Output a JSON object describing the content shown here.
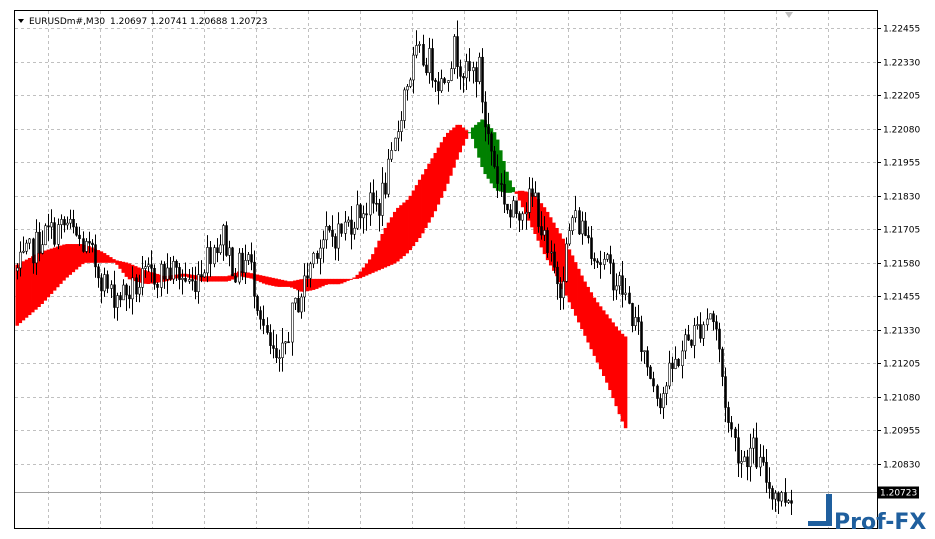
{
  "chart_title": {
    "symbol_timeframe": "EURUSDm#,M30",
    "ohlc": "1.20697 1.20741 1.20688 1.20723"
  },
  "watermark": {
    "text": "Prof-FX"
  },
  "colors": {
    "background": "#ffffff",
    "grid": "#c0c0c0",
    "candle": "#000000",
    "cloud_up": "#008000",
    "cloud_down": "#ff0000",
    "price_tag_bg": "#000000",
    "logo": "#1f5f9e"
  },
  "chart_data": {
    "type": "candlestick",
    "title": "EURUSDm#,M30  1.20697 1.20741 1.20688 1.20723",
    "ylim": [
      1.2059,
      1.2252
    ],
    "y_ticks": [
      "1.22455",
      "1.22330",
      "1.22205",
      "1.22080",
      "1.21955",
      "1.21830",
      "1.21705",
      "1.21580",
      "1.21455",
      "1.21330",
      "1.21205",
      "1.21080",
      "1.20955",
      "1.20830"
    ],
    "current_price": "1.20723",
    "grid": true,
    "close_anchors": [
      [
        0,
        1.2155
      ],
      [
        8,
        1.2168
      ],
      [
        16,
        1.2172
      ],
      [
        24,
        1.216
      ],
      [
        30,
        1.2146
      ],
      [
        36,
        1.2147
      ],
      [
        42,
        1.2153
      ],
      [
        50,
        1.2155
      ],
      [
        56,
        1.215
      ],
      [
        62,
        1.2163
      ],
      [
        66,
        1.2168
      ],
      [
        70,
        1.2155
      ],
      [
        74,
        1.216
      ],
      [
        78,
        1.214
      ],
      [
        80,
        1.2128
      ],
      [
        84,
        1.2118
      ],
      [
        88,
        1.2138
      ],
      [
        92,
        1.215
      ],
      [
        96,
        1.2165
      ],
      [
        104,
        1.217
      ],
      [
        110,
        1.2178
      ],
      [
        116,
        1.218
      ],
      [
        120,
        1.2195
      ],
      [
        124,
        1.2222
      ],
      [
        128,
        1.2235
      ],
      [
        132,
        1.2233
      ],
      [
        136,
        1.2225
      ],
      [
        140,
        1.2238
      ],
      [
        144,
        1.2228
      ],
      [
        148,
        1.223
      ],
      [
        150,
        1.221
      ],
      [
        154,
        1.219
      ],
      [
        158,
        1.2175
      ],
      [
        162,
        1.218
      ],
      [
        166,
        1.2182
      ],
      [
        170,
        1.216
      ],
      [
        174,
        1.215
      ],
      [
        178,
        1.2175
      ],
      [
        182,
        1.217
      ],
      [
        186,
        1.216
      ],
      [
        190,
        1.2155
      ],
      [
        194,
        1.2148
      ],
      [
        198,
        1.2135
      ],
      [
        202,
        1.212
      ],
      [
        206,
        1.2108
      ],
      [
        210,
        1.2118
      ],
      [
        214,
        1.2128
      ],
      [
        218,
        1.2133
      ],
      [
        222,
        1.214
      ],
      [
        224,
        1.2133
      ],
      [
        228,
        1.2098
      ],
      [
        232,
        1.2085
      ],
      [
        236,
        1.2088
      ],
      [
        238,
        1.2082
      ],
      [
        241,
        1.2075
      ],
      [
        245,
        1.207
      ],
      [
        248,
        1.2072
      ]
    ],
    "cloud": [
      [
        0,
        1.2134,
        1.2157
      ],
      [
        8,
        1.2142,
        1.2162
      ],
      [
        16,
        1.2152,
        1.2165
      ],
      [
        22,
        1.2158,
        1.2165
      ],
      [
        28,
        1.2158,
        1.2162
      ],
      [
        32,
        1.2158,
        1.2159
      ],
      [
        36,
        1.2152,
        1.2158
      ],
      [
        42,
        1.215,
        1.2155
      ],
      [
        48,
        1.2151,
        1.2153
      ],
      [
        54,
        1.2153,
        1.2154
      ],
      [
        60,
        1.2151,
        1.2153
      ],
      [
        64,
        1.2151,
        1.2153
      ],
      [
        68,
        1.2151,
        1.2153
      ],
      [
        72,
        1.2153,
        1.2155
      ],
      [
        76,
        1.2152,
        1.2154
      ],
      [
        80,
        1.215,
        1.2153
      ],
      [
        84,
        1.2149,
        1.2152
      ],
      [
        88,
        1.2149,
        1.2151
      ],
      [
        92,
        1.2147,
        1.2152
      ],
      [
        96,
        1.2148,
        1.2152
      ],
      [
        100,
        1.215,
        1.2152
      ],
      [
        104,
        1.215,
        1.2152
      ],
      [
        108,
        1.2152,
        1.2152
      ],
      [
        110,
        1.2152,
        1.2154
      ],
      [
        114,
        1.2154,
        1.216
      ],
      [
        118,
        1.2156,
        1.217
      ],
      [
        122,
        1.2158,
        1.2178
      ],
      [
        126,
        1.2162,
        1.2182
      ],
      [
        130,
        1.2168,
        1.219
      ],
      [
        134,
        1.2176,
        1.2198
      ],
      [
        138,
        1.2186,
        1.2206
      ],
      [
        142,
        1.2198,
        1.221
      ],
      [
        146,
        1.2208,
        1.2206
      ],
      [
        150,
        1.2212,
        1.2192
      ],
      [
        154,
        1.2206,
        1.2185
      ],
      [
        158,
        1.219,
        1.2184
      ],
      [
        162,
        1.218,
        1.2185
      ],
      [
        166,
        1.217,
        1.2184
      ],
      [
        170,
        1.216,
        1.2178
      ],
      [
        174,
        1.2152,
        1.217
      ],
      [
        178,
        1.2142,
        1.2162
      ],
      [
        182,
        1.2132,
        1.2152
      ],
      [
        186,
        1.2122,
        1.2144
      ],
      [
        190,
        1.2112,
        1.2138
      ],
      [
        194,
        1.21,
        1.2132
      ],
      [
        196,
        1.2095,
        1.213
      ]
    ]
  }
}
